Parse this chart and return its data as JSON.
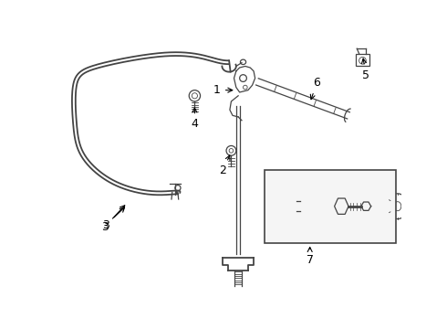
{
  "bg_color": "#ffffff",
  "fig_width": 4.9,
  "fig_height": 3.6,
  "dpi": 100,
  "line_color": "#444444",
  "box_color": "#333333"
}
